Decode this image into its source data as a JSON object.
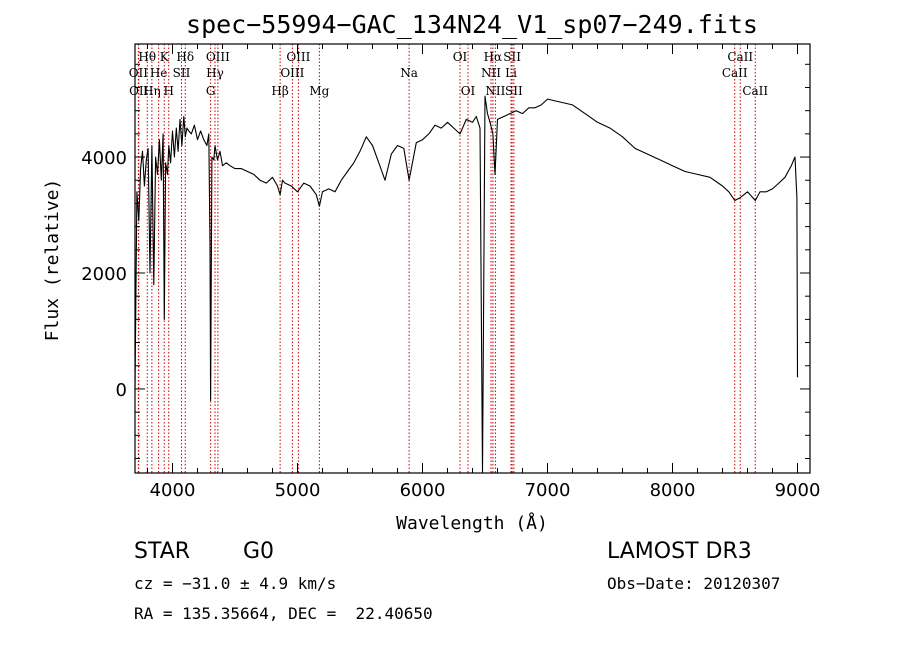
{
  "chart_data": {
    "type": "line",
    "title": "spec−55994−GAC_134N24_V1_sp07−249.fits",
    "xlabel": "Wavelength (Å)",
    "ylabel": "Flux (relative)",
    "xlim": [
      3700,
      9100
    ],
    "ylim": [
      -1450,
      5950
    ],
    "x_ticks": [
      4000,
      5000,
      6000,
      7000,
      8000,
      9000
    ],
    "y_ticks": [
      0,
      2000,
      4000
    ],
    "grid": false,
    "legend": "none",
    "line_color": "#000000",
    "marker_color": "#cc0000",
    "spectral_lines": [
      {
        "label": "Hθ",
        "wavelength": 3798,
        "row": 0
      },
      {
        "label": "K",
        "wavelength": 3934,
        "row": 0
      },
      {
        "label": "Hδ",
        "wavelength": 4102,
        "row": 0
      },
      {
        "label": "OIII",
        "wavelength": 4363,
        "row": 0
      },
      {
        "label": "OIII",
        "wavelength": 5007,
        "row": 0
      },
      {
        "label": "OI",
        "wavelength": 6300,
        "row": 0
      },
      {
        "label": "Hα",
        "wavelength": 6563,
        "row": 0
      },
      {
        "label": "SII",
        "wavelength": 6717,
        "row": 0
      },
      {
        "label": "CaII",
        "wavelength": 8542,
        "row": 0
      },
      {
        "label": "OII",
        "wavelength": 3727,
        "row": 1
      },
      {
        "label": "He",
        "wavelength": 3889,
        "row": 1
      },
      {
        "label": "SII",
        "wavelength": 4072,
        "row": 1
      },
      {
        "label": "Hγ",
        "wavelength": 4340,
        "row": 1
      },
      {
        "label": "OIII",
        "wavelength": 4959,
        "row": 1
      },
      {
        "label": "Na",
        "wavelength": 5893,
        "row": 1
      },
      {
        "label": "NII",
        "wavelength": 6548,
        "row": 1
      },
      {
        "label": "Li",
        "wavelength": 6708,
        "row": 1
      },
      {
        "label": "CaII",
        "wavelength": 8498,
        "row": 1
      },
      {
        "label": "OII",
        "wavelength": 3730,
        "row": 2
      },
      {
        "label": "Hη",
        "wavelength": 3835,
        "row": 2
      },
      {
        "label": "H",
        "wavelength": 3970,
        "row": 2
      },
      {
        "label": "G",
        "wavelength": 4305,
        "row": 2
      },
      {
        "label": "Hβ",
        "wavelength": 4861,
        "row": 2
      },
      {
        "label": "Mg",
        "wavelength": 5175,
        "row": 2
      },
      {
        "label": "OI",
        "wavelength": 6364,
        "row": 2
      },
      {
        "label": "NII",
        "wavelength": 6583,
        "row": 2
      },
      {
        "label": "SII",
        "wavelength": 6731,
        "row": 2
      },
      {
        "label": "CaII",
        "wavelength": 8662,
        "row": 2
      }
    ],
    "spectrum": {
      "x": [
        3700,
        3715,
        3730,
        3745,
        3760,
        3775,
        3790,
        3805,
        3820,
        3835,
        3850,
        3865,
        3880,
        3895,
        3910,
        3925,
        3934,
        3945,
        3960,
        3970,
        3985,
        4000,
        4015,
        4030,
        4045,
        4060,
        4075,
        4090,
        4102,
        4115,
        4130,
        4150,
        4175,
        4200,
        4225,
        4250,
        4275,
        4290,
        4300,
        4305,
        4315,
        4330,
        4340,
        4360,
        4380,
        4400,
        4430,
        4460,
        4500,
        4550,
        4600,
        4650,
        4700,
        4750,
        4800,
        4840,
        4861,
        4880,
        4900,
        4950,
        5000,
        5050,
        5100,
        5150,
        5175,
        5200,
        5250,
        5300,
        5350,
        5400,
        5450,
        5500,
        5550,
        5600,
        5650,
        5700,
        5750,
        5800,
        5850,
        5893,
        5950,
        6000,
        6050,
        6100,
        6150,
        6200,
        6250,
        6300,
        6350,
        6400,
        6430,
        6460,
        6480,
        6500,
        6520,
        6540,
        6563,
        6580,
        6600,
        6650,
        6700,
        6750,
        6800,
        6850,
        6900,
        6950,
        7000,
        7100,
        7200,
        7300,
        7400,
        7500,
        7600,
        7700,
        7800,
        7900,
        8000,
        8100,
        8200,
        8300,
        8400,
        8450,
        8498,
        8542,
        8600,
        8662,
        8700,
        8750,
        8800,
        8850,
        8900,
        8950,
        8980,
        8995,
        9000
      ],
      "flux": [
        0,
        3400,
        2900,
        3800,
        4100,
        3500,
        3950,
        4150,
        2000,
        4200,
        1800,
        4000,
        3700,
        4300,
        3600,
        4400,
        1200,
        3900,
        3700,
        4200,
        3900,
        4450,
        4000,
        4500,
        4100,
        4650,
        4200,
        4700,
        4350,
        4500,
        4450,
        4400,
        4550,
        4300,
        4450,
        4300,
        4200,
        4400,
        2500,
        -200,
        4000,
        3950,
        4200,
        3950,
        4100,
        3850,
        3900,
        3850,
        3800,
        3800,
        3750,
        3700,
        3600,
        3550,
        3650,
        3500,
        3350,
        3600,
        3550,
        3500,
        3400,
        3550,
        3500,
        3350,
        3150,
        3400,
        3450,
        3400,
        3600,
        3750,
        3900,
        4100,
        4350,
        4200,
        3900,
        3600,
        4050,
        4200,
        4150,
        3600,
        4250,
        4300,
        4400,
        4550,
        4500,
        4600,
        4500,
        4400,
        4650,
        4600,
        4700,
        4500,
        -1450,
        5050,
        4750,
        4600,
        4400,
        3700,
        4650,
        4700,
        4750,
        4800,
        4750,
        4850,
        4850,
        4900,
        5000,
        4950,
        4900,
        4750,
        4600,
        4500,
        4350,
        4150,
        4050,
        3950,
        3850,
        3750,
        3700,
        3650,
        3500,
        3400,
        3250,
        3300,
        3400,
        3250,
        3400,
        3400,
        3450,
        3550,
        3650,
        3850,
        4000,
        3300,
        200
      ]
    }
  },
  "info": {
    "object_class": "STAR",
    "subclass": "G0",
    "cz": "cz = −31.0 ± 4.9 km/s",
    "coords": "RA = 135.35664, DEC =  22.40650",
    "survey": "LAMOST DR3",
    "obs_date": "Obs−Date: 20120307"
  }
}
